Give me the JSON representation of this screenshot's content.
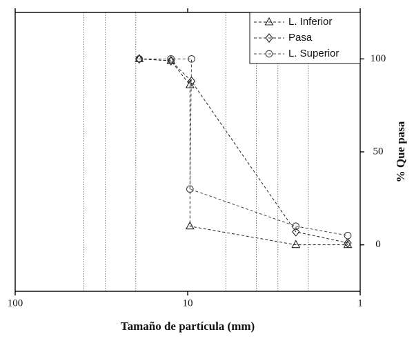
{
  "chart_data": {
    "type": "line",
    "x_label": "Tamaño de partícula (mm)",
    "y_label": "% Que pasa",
    "xscale": "log",
    "xlim": [
      100,
      1
    ],
    "xticks": [
      100,
      10,
      1
    ],
    "ylim": [
      -25,
      125
    ],
    "yticks": [
      0,
      50,
      100
    ],
    "reference_lines": [
      40,
      30,
      20,
      6,
      4,
      3,
      2
    ],
    "legend": "upper right",
    "series": [
      {
        "name": "L. Inferior",
        "marker": "triangle",
        "color": "#222222",
        "x": [
          19.1,
          12.5,
          9.7,
          9.7,
          2.36,
          1.18
        ],
        "values": [
          100,
          99,
          86,
          10,
          0,
          0
        ]
      },
      {
        "name": "Pasa",
        "marker": "diamond",
        "color": "#222222",
        "x": [
          19.1,
          12.5,
          9.5,
          2.36,
          1.18
        ],
        "values": [
          100,
          99,
          88,
          7,
          1
        ]
      },
      {
        "name": "L. Superior",
        "marker": "circle",
        "color": "#444444",
        "x": [
          19.1,
          12.5,
          9.5,
          9.7,
          2.36,
          1.18
        ],
        "values": [
          100,
          100,
          100,
          30,
          10,
          5
        ]
      }
    ]
  }
}
